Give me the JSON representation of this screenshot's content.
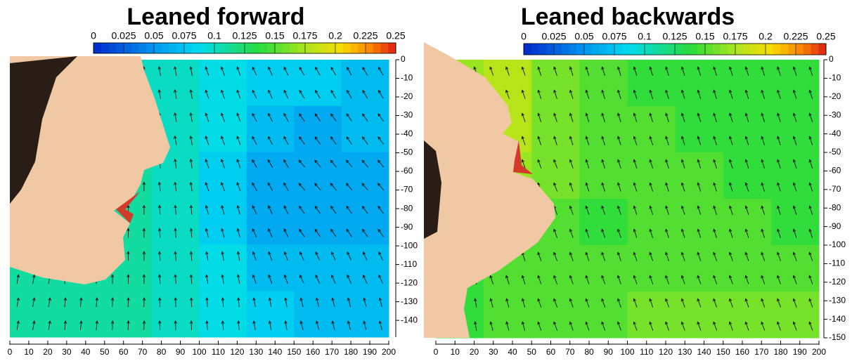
{
  "chart_data": [
    {
      "type": "vector-field",
      "title": "Leaned forward",
      "cticks": [
        0,
        0.025,
        0.05,
        0.075,
        0.1,
        0.125,
        0.15,
        0.175,
        0.2,
        0.225,
        0.25
      ],
      "clim": [
        0,
        0.25
      ],
      "xlim": [
        0,
        200
      ],
      "xticks": [
        0,
        10,
        20,
        30,
        40,
        50,
        60,
        70,
        80,
        90,
        100,
        110,
        120,
        130,
        140,
        150,
        160,
        170,
        180,
        190,
        200
      ],
      "ylim": [
        -149,
        0
      ],
      "yticks": [
        0,
        -10,
        -20,
        -30,
        -40,
        -50,
        -60,
        -70,
        -80,
        -90,
        -100,
        -110,
        -120,
        -130,
        -140
      ],
      "values": [
        [
          0.09,
          0.09,
          0.1,
          0.1,
          0.09,
          0.08,
          0.08,
          0.07
        ],
        [
          0.09,
          0.1,
          0.11,
          0.1,
          0.09,
          0.07,
          0.06,
          0.07
        ],
        [
          0.09,
          0.1,
          0.11,
          0.1,
          0.08,
          0.06,
          0.06,
          0.06
        ],
        [
          0.1,
          0.11,
          0.11,
          0.1,
          0.08,
          0.06,
          0.06,
          0.06
        ],
        [
          0.11,
          0.11,
          0.11,
          0.1,
          0.09,
          0.07,
          0.07,
          0.07
        ],
        [
          0.11,
          0.11,
          0.11,
          0.1,
          0.09,
          0.08,
          0.07,
          0.07
        ]
      ],
      "angles": [
        [
          90,
          92,
          95,
          100,
          110,
          115,
          120,
          120
        ],
        [
          90,
          90,
          92,
          100,
          110,
          118,
          125,
          125
        ],
        [
          90,
          90,
          90,
          98,
          110,
          120,
          130,
          130
        ],
        [
          85,
          88,
          90,
          95,
          105,
          115,
          125,
          125
        ],
        [
          80,
          85,
          90,
          95,
          100,
          110,
          115,
          115
        ],
        [
          80,
          85,
          88,
          92,
          95,
          100,
          105,
          105
        ]
      ]
    },
    {
      "type": "vector-field",
      "title": "Leaned backwards",
      "cticks": [
        0,
        0.025,
        0.05,
        0.075,
        0.1,
        0.125,
        0.15,
        0.175,
        0.2,
        0.225,
        0.25
      ],
      "clim": [
        0,
        0.25
      ],
      "xlim": [
        0,
        200
      ],
      "xticks": [
        0,
        10,
        20,
        30,
        40,
        50,
        60,
        70,
        80,
        90,
        100,
        110,
        120,
        130,
        140,
        150,
        160,
        170,
        180,
        190,
        200
      ],
      "ylim": [
        -150,
        0
      ],
      "yticks": [
        0,
        -10,
        -20,
        -30,
        -40,
        -50,
        -60,
        -70,
        -80,
        -90,
        -100,
        -110,
        -120,
        -130,
        -140,
        -150
      ],
      "values": [
        [
          0.17,
          0.18,
          0.16,
          0.15,
          0.14,
          0.14,
          0.14,
          0.14
        ],
        [
          0.17,
          0.18,
          0.16,
          0.15,
          0.15,
          0.14,
          0.14,
          0.14
        ],
        [
          0.16,
          0.17,
          0.16,
          0.15,
          0.15,
          0.15,
          0.14,
          0.14
        ],
        [
          0.15,
          0.16,
          0.15,
          0.14,
          0.15,
          0.15,
          0.15,
          0.14
        ],
        [
          0.14,
          0.15,
          0.15,
          0.15,
          0.15,
          0.15,
          0.15,
          0.15
        ],
        [
          0.14,
          0.15,
          0.15,
          0.15,
          0.16,
          0.16,
          0.16,
          0.16
        ]
      ],
      "angles": [
        [
          110,
          110,
          108,
          108,
          108,
          108,
          108,
          108
        ],
        [
          110,
          110,
          108,
          108,
          108,
          108,
          108,
          108
        ],
        [
          110,
          110,
          110,
          108,
          108,
          108,
          108,
          108
        ],
        [
          105,
          110,
          110,
          110,
          108,
          108,
          108,
          108
        ],
        [
          100,
          108,
          110,
          110,
          110,
          110,
          110,
          110
        ],
        [
          100,
          105,
          110,
          110,
          110,
          110,
          110,
          110
        ]
      ]
    }
  ]
}
